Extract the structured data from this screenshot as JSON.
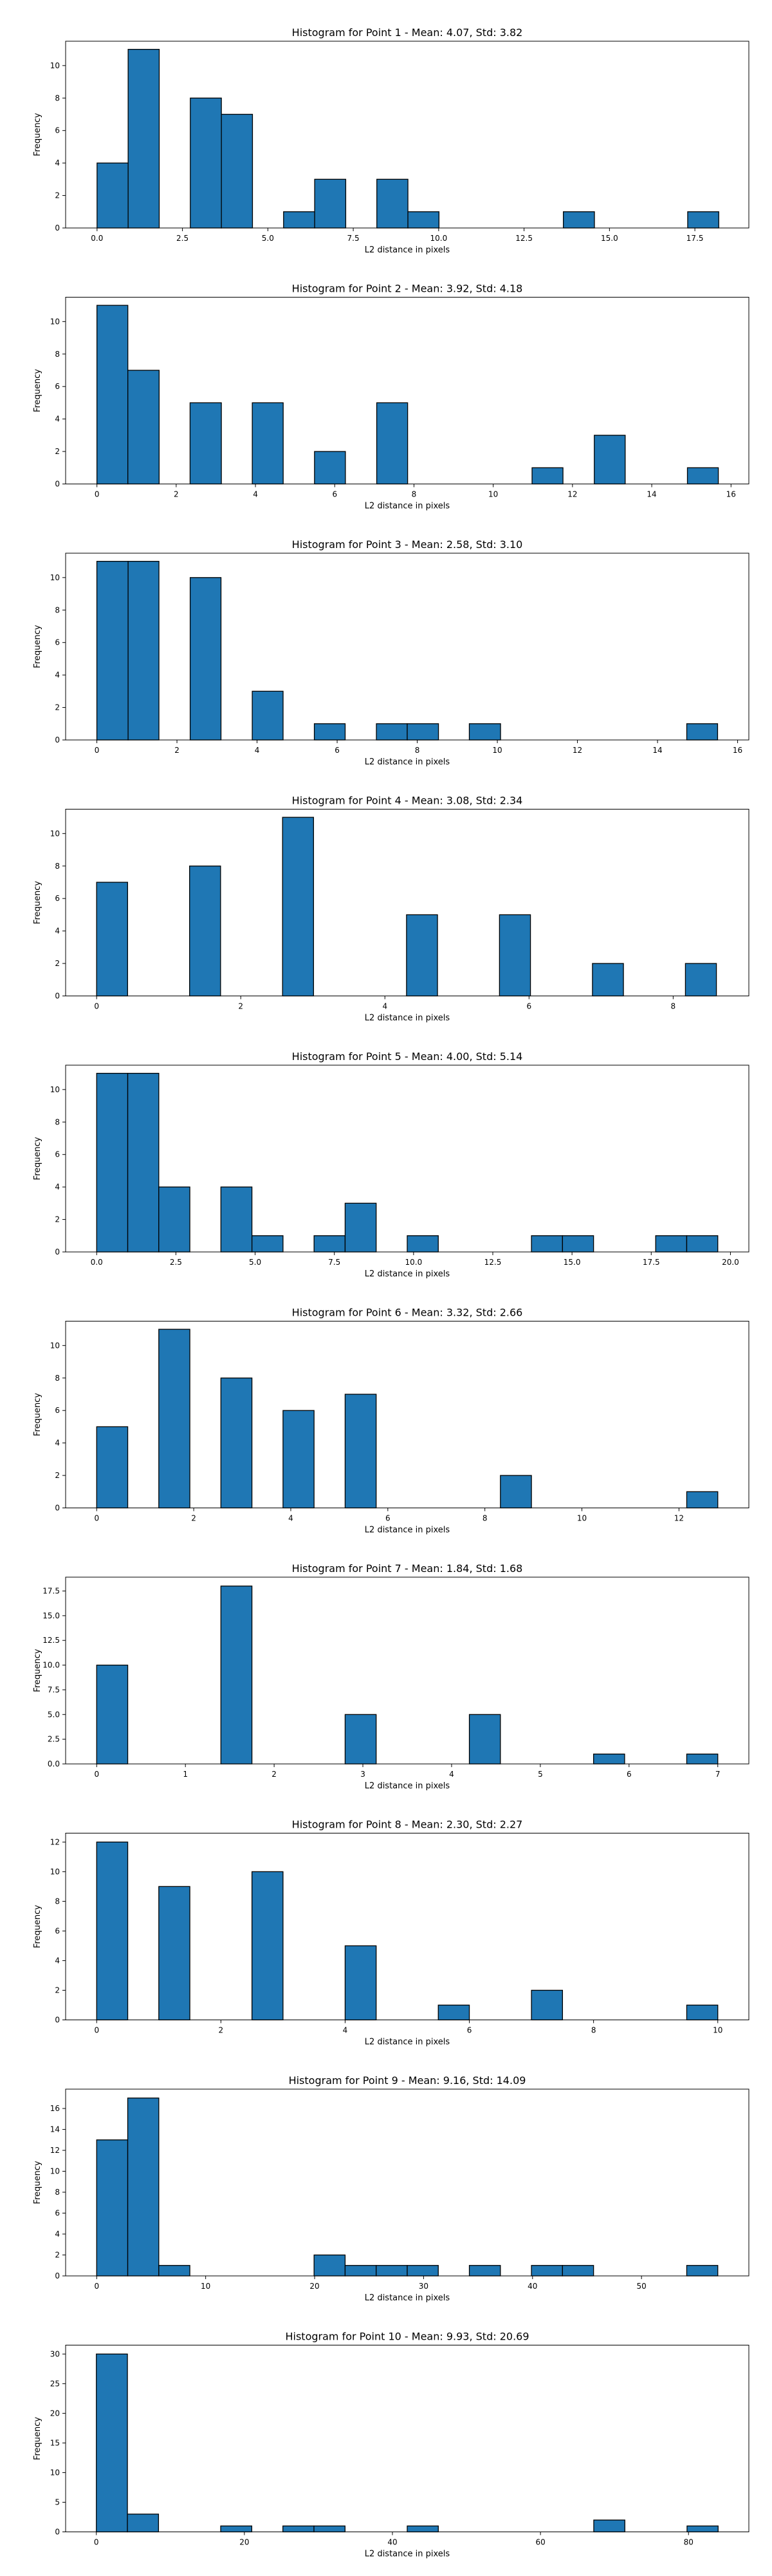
{
  "figure": {
    "bar_color": "#1f77b4",
    "bar_edge_color": "#000000"
  },
  "chart_data": [
    {
      "type": "bar",
      "title": "Histogram for Point 1 - Mean: 4.07, Std: 3.82",
      "xlabel": "L2 distance in pixels",
      "ylabel": "Frequency",
      "xlim": [
        -0.92,
        19.08
      ],
      "ylim": [
        0,
        11.5
      ],
      "xticks": [
        0.0,
        2.5,
        5.0,
        7.5,
        10.0,
        12.5,
        15.0,
        17.5
      ],
      "xtick_labels": [
        "0.0",
        "2.5",
        "5.0",
        "7.5",
        "10.0",
        "12.5",
        "15.0",
        "17.5"
      ],
      "yticks": [
        0,
        2,
        4,
        6,
        8,
        10
      ],
      "ytick_labels": [
        "0",
        "2",
        "4",
        "6",
        "8",
        "10"
      ],
      "bins": [
        [
          0.0,
          0.91,
          4
        ],
        [
          0.91,
          1.82,
          11
        ],
        [
          2.73,
          3.64,
          8
        ],
        [
          3.64,
          4.55,
          7
        ],
        [
          5.46,
          6.37,
          1
        ],
        [
          6.37,
          7.28,
          3
        ],
        [
          8.19,
          9.1,
          3
        ],
        [
          9.1,
          10.01,
          1
        ],
        [
          13.65,
          14.56,
          1
        ],
        [
          17.29,
          18.2,
          1
        ]
      ]
    },
    {
      "type": "bar",
      "title": "Histogram for Point 2 - Mean: 3.92, Std: 4.18",
      "xlabel": "L2 distance in pixels",
      "ylabel": "Frequency",
      "xlim": [
        -0.79,
        16.45
      ],
      "ylim": [
        0,
        11.5
      ],
      "xticks": [
        0,
        2,
        4,
        6,
        8,
        10,
        12,
        14,
        16
      ],
      "xtick_labels": [
        "0",
        "2",
        "4",
        "6",
        "8",
        "10",
        "12",
        "14",
        "16"
      ],
      "yticks": [
        0,
        2,
        4,
        6,
        8,
        10
      ],
      "ytick_labels": [
        "0",
        "2",
        "4",
        "6",
        "8",
        "10"
      ],
      "bins": [
        [
          0.0,
          0.78,
          11
        ],
        [
          0.78,
          1.57,
          7
        ],
        [
          2.35,
          3.14,
          5
        ],
        [
          3.92,
          4.7,
          5
        ],
        [
          5.49,
          6.27,
          2
        ],
        [
          7.06,
          7.84,
          5
        ],
        [
          10.98,
          11.76,
          1
        ],
        [
          12.55,
          13.33,
          3
        ],
        [
          14.9,
          15.68,
          1
        ]
      ]
    },
    {
      "type": "bar",
      "title": "Histogram for Point 3 - Mean: 2.58, Std: 3.10",
      "xlabel": "L2 distance in pixels",
      "ylabel": "Frequency",
      "xlim": [
        -0.78,
        16.28
      ],
      "ylim": [
        0,
        11.5
      ],
      "xticks": [
        0,
        2,
        4,
        6,
        8,
        10,
        12,
        14,
        16
      ],
      "xtick_labels": [
        "0",
        "2",
        "4",
        "6",
        "8",
        "10",
        "12",
        "14",
        "16"
      ],
      "yticks": [
        0,
        2,
        4,
        6,
        8,
        10
      ],
      "ytick_labels": [
        "0",
        "2",
        "4",
        "6",
        "8",
        "10"
      ],
      "bins": [
        [
          0.0,
          0.78,
          11
        ],
        [
          0.78,
          1.55,
          11
        ],
        [
          2.33,
          3.1,
          10
        ],
        [
          3.88,
          4.65,
          3
        ],
        [
          5.43,
          6.2,
          1
        ],
        [
          6.98,
          7.75,
          1
        ],
        [
          7.75,
          8.53,
          1
        ],
        [
          9.3,
          10.08,
          1
        ],
        [
          14.73,
          15.5,
          1
        ]
      ]
    },
    {
      "type": "bar",
      "title": "Histogram for Point 4 - Mean: 3.08, Std: 2.34",
      "xlabel": "L2 distance in pixels",
      "ylabel": "Frequency",
      "xlim": [
        -0.43,
        9.05
      ],
      "ylim": [
        0,
        11.5
      ],
      "xticks": [
        0,
        2,
        4,
        6,
        8
      ],
      "xtick_labels": [
        "0",
        "2",
        "4",
        "6",
        "8"
      ],
      "yticks": [
        0,
        2,
        4,
        6,
        8,
        10
      ],
      "ytick_labels": [
        "0",
        "2",
        "4",
        "6",
        "8",
        "10"
      ],
      "bins": [
        [
          0.0,
          0.43,
          7
        ],
        [
          1.29,
          1.72,
          8
        ],
        [
          2.58,
          3.01,
          11
        ],
        [
          4.3,
          4.73,
          5
        ],
        [
          5.59,
          6.02,
          5
        ],
        [
          6.88,
          7.31,
          2
        ],
        [
          8.17,
          8.6,
          2
        ]
      ]
    },
    {
      "type": "bar",
      "title": "Histogram for Point 5 - Mean: 4.00, Std: 5.14",
      "xlabel": "L2 distance in pixels",
      "ylabel": "Frequency",
      "xlim": [
        -0.98,
        20.58
      ],
      "ylim": [
        0,
        11.5
      ],
      "xticks": [
        0.0,
        2.5,
        5.0,
        7.5,
        10.0,
        12.5,
        15.0,
        17.5,
        20.0
      ],
      "xtick_labels": [
        "0.0",
        "2.5",
        "5.0",
        "7.5",
        "10.0",
        "12.5",
        "15.0",
        "17.5",
        "20.0"
      ],
      "yticks": [
        0,
        2,
        4,
        6,
        8,
        10
      ],
      "ytick_labels": [
        "0",
        "2",
        "4",
        "6",
        "8",
        "10"
      ],
      "bins": [
        [
          0.0,
          0.98,
          11
        ],
        [
          0.98,
          1.96,
          11
        ],
        [
          1.96,
          2.94,
          4
        ],
        [
          3.92,
          4.9,
          4
        ],
        [
          4.9,
          5.88,
          1
        ],
        [
          6.86,
          7.84,
          1
        ],
        [
          7.84,
          8.82,
          3
        ],
        [
          9.8,
          10.78,
          1
        ],
        [
          13.72,
          14.7,
          1
        ],
        [
          14.7,
          15.68,
          1
        ],
        [
          17.64,
          18.62,
          1
        ],
        [
          18.62,
          19.6,
          1
        ]
      ]
    },
    {
      "type": "bar",
      "title": "Histogram for Point 6 - Mean: 3.32, Std: 2.66",
      "xlabel": "L2 distance in pixels",
      "ylabel": "Frequency",
      "xlim": [
        -0.64,
        13.44
      ],
      "ylim": [
        0,
        11.5
      ],
      "xticks": [
        0,
        2,
        4,
        6,
        8,
        10,
        12
      ],
      "xtick_labels": [
        "0",
        "2",
        "4",
        "6",
        "8",
        "10",
        "12"
      ],
      "yticks": [
        0,
        2,
        4,
        6,
        8,
        10
      ],
      "ytick_labels": [
        "0",
        "2",
        "4",
        "6",
        "8",
        "10"
      ],
      "bins": [
        [
          0.0,
          0.64,
          5
        ],
        [
          1.28,
          1.92,
          11
        ],
        [
          2.56,
          3.2,
          8
        ],
        [
          3.84,
          4.48,
          6
        ],
        [
          5.12,
          5.76,
          7
        ],
        [
          8.32,
          8.96,
          2
        ],
        [
          12.16,
          12.8,
          1
        ]
      ]
    },
    {
      "type": "bar",
      "title": "Histogram for Point 7 - Mean: 1.84, Std: 1.68",
      "xlabel": "L2 distance in pixels",
      "ylabel": "Frequency",
      "xlim": [
        -0.35,
        7.35
      ],
      "ylim": [
        0,
        18.9
      ],
      "xticks": [
        0,
        1,
        2,
        3,
        4,
        5,
        6,
        7
      ],
      "xtick_labels": [
        "0",
        "1",
        "2",
        "3",
        "4",
        "5",
        "6",
        "7"
      ],
      "yticks": [
        0.0,
        2.5,
        5.0,
        7.5,
        10.0,
        12.5,
        15.0,
        17.5
      ],
      "ytick_labels": [
        "0.0",
        "2.5",
        "5.0",
        "7.5",
        "10.0",
        "12.5",
        "15.0",
        "17.5"
      ],
      "bins": [
        [
          0.0,
          0.35,
          10
        ],
        [
          1.4,
          1.75,
          18
        ],
        [
          2.8,
          3.15,
          5
        ],
        [
          4.2,
          4.55,
          5
        ],
        [
          5.6,
          5.95,
          1
        ],
        [
          6.65,
          7.0,
          1
        ]
      ]
    },
    {
      "type": "bar",
      "title": "Histogram for Point 8 - Mean: 2.30, Std: 2.27",
      "xlabel": "L2 distance in pixels",
      "ylabel": "Frequency",
      "xlim": [
        -0.5,
        10.5
      ],
      "ylim": [
        0,
        12.6
      ],
      "xticks": [
        0,
        2,
        4,
        6,
        8,
        10
      ],
      "xtick_labels": [
        "0",
        "2",
        "4",
        "6",
        "8",
        "10"
      ],
      "yticks": [
        0,
        2,
        4,
        6,
        8,
        10,
        12
      ],
      "ytick_labels": [
        "0",
        "2",
        "4",
        "6",
        "8",
        "10",
        "12"
      ],
      "bins": [
        [
          0.0,
          0.5,
          12
        ],
        [
          1.0,
          1.5,
          9
        ],
        [
          2.5,
          3.0,
          10
        ],
        [
          4.0,
          4.5,
          5
        ],
        [
          5.5,
          6.0,
          1
        ],
        [
          7.0,
          7.5,
          2
        ],
        [
          9.5,
          10.0,
          1
        ]
      ]
    },
    {
      "type": "bar",
      "title": "Histogram for Point 9 - Mean: 9.16, Std: 14.09",
      "xlabel": "L2 distance in pixels",
      "ylabel": "Frequency",
      "xlim": [
        -2.85,
        59.85
      ],
      "ylim": [
        0,
        17.85
      ],
      "xticks": [
        0,
        10,
        20,
        30,
        40,
        50
      ],
      "xtick_labels": [
        "0",
        "10",
        "20",
        "30",
        "40",
        "50"
      ],
      "yticks": [
        0,
        2,
        4,
        6,
        8,
        10,
        12,
        14,
        16
      ],
      "ytick_labels": [
        "0",
        "2",
        "4",
        "6",
        "8",
        "10",
        "12",
        "14",
        "16"
      ],
      "bins": [
        [
          0.0,
          2.85,
          13
        ],
        [
          2.85,
          5.7,
          17
        ],
        [
          5.7,
          8.55,
          1
        ],
        [
          19.95,
          22.8,
          2
        ],
        [
          22.8,
          25.65,
          1
        ],
        [
          25.65,
          28.5,
          1
        ],
        [
          28.5,
          31.35,
          1
        ],
        [
          34.2,
          37.05,
          1
        ],
        [
          39.9,
          42.75,
          1
        ],
        [
          42.75,
          45.6,
          1
        ],
        [
          54.15,
          57.0,
          1
        ]
      ]
    },
    {
      "type": "bar",
      "title": "Histogram for Point 10 - Mean: 9.93, Std: 20.69",
      "xlabel": "L2 distance in pixels",
      "ylabel": "Frequency",
      "xlim": [
        -4.15,
        88.15
      ],
      "ylim": [
        0,
        31.5
      ],
      "xticks": [
        0,
        20,
        40,
        60,
        80
      ],
      "xtick_labels": [
        "0",
        "20",
        "40",
        "60",
        "80"
      ],
      "yticks": [
        0,
        5,
        10,
        15,
        20,
        25,
        30
      ],
      "ytick_labels": [
        "0",
        "5",
        "10",
        "15",
        "20",
        "25",
        "30"
      ],
      "bins": [
        [
          0.0,
          4.2,
          30
        ],
        [
          4.2,
          8.4,
          3
        ],
        [
          16.8,
          21.0,
          1
        ],
        [
          25.2,
          29.4,
          1
        ],
        [
          29.4,
          33.6,
          1
        ],
        [
          42.0,
          46.2,
          1
        ],
        [
          67.2,
          71.4,
          2
        ],
        [
          79.8,
          84.0,
          1
        ]
      ]
    }
  ]
}
